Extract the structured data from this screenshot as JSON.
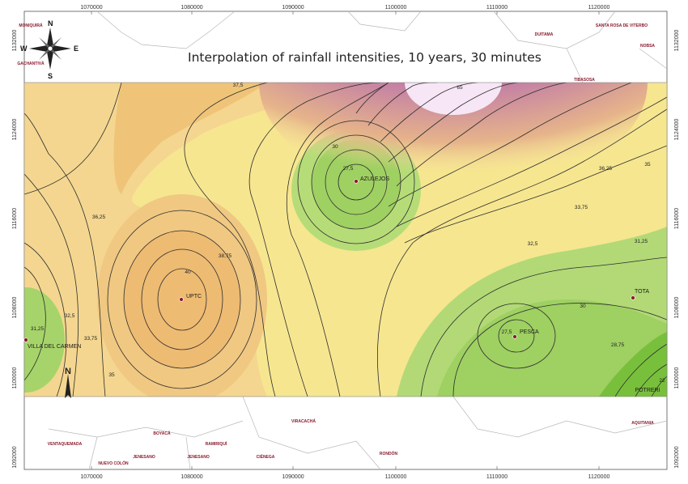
{
  "title": "Interpolation of rainfall intensities, 10 years, 30 minutes",
  "compass": {
    "n": "N",
    "s": "S",
    "e": "E",
    "w": "W"
  },
  "x_ticks_top": [
    "1070000",
    "1080000",
    "1090000",
    "1100000",
    "1110000",
    "1120000"
  ],
  "x_ticks_bottom": [
    "1070000",
    "1080000",
    "1090000",
    "1100000",
    "1110000",
    "1120000"
  ],
  "y_ticks_left": [
    "1132000",
    "1124000",
    "1116000",
    "1108000",
    "1100000",
    "1092000"
  ],
  "y_ticks_right": [
    "1132000",
    "1124000",
    "1116000",
    "1108000",
    "1100000",
    "1092000"
  ],
  "stations": [
    {
      "name": "UPTC"
    },
    {
      "name": "AZULEJOS"
    },
    {
      "name": "PESCA"
    },
    {
      "name": "TOTA"
    },
    {
      "name": "VILLA DEL CARMEN"
    },
    {
      "name": "POTRERI"
    }
  ],
  "towns": [
    "MONIQUIRÁ",
    "GACHANTIVÁ",
    "DUITAMA",
    "SANTA ROSA DE VITERBO",
    "NOBSA",
    "TIBASOSA",
    "BOYACÁ",
    "RAMIRIQUÍ",
    "VIRACACHÁ",
    "RONDÓN",
    "AQUITANIA",
    "VENTAQUEMADA",
    "NUEVO COLÓN",
    "JENESANO",
    "JENESANO",
    "CIÉNEGA"
  ],
  "contour_labels": [
    "37,5",
    "30",
    "27,5",
    "33,75",
    "36,25",
    "38,75",
    "40",
    "32,5",
    "31,25",
    "30",
    "28,75",
    "27,5",
    "36,25",
    "35",
    "32,5",
    "31,25",
    "33,75",
    "35",
    "22",
    "65"
  ],
  "legend_colors": {
    "high": "#f4dff0",
    "mid": "#f3dca0",
    "low": "#a8d86a",
    "lowest": "#72c23a",
    "contour": "#2d2d2d"
  }
}
